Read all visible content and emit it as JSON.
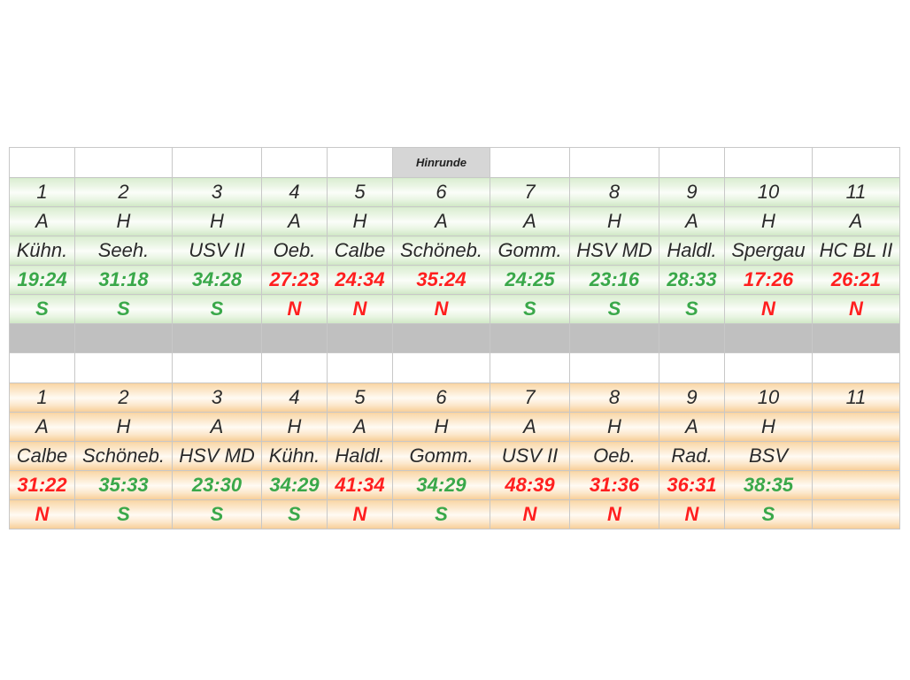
{
  "header": {
    "label": "Hinrunde"
  },
  "hinrunde": {
    "games": [
      {
        "nr": "1",
        "venue": "A",
        "opponent": "Kühn.",
        "score": "19:24",
        "result": "S"
      },
      {
        "nr": "2",
        "venue": "H",
        "opponent": "Seeh.",
        "score": "31:18",
        "result": "S"
      },
      {
        "nr": "3",
        "venue": "H",
        "opponent": "USV II",
        "score": "34:28",
        "result": "S"
      },
      {
        "nr": "4",
        "venue": "A",
        "opponent": "Oeb.",
        "score": "27:23",
        "result": "N"
      },
      {
        "nr": "5",
        "venue": "H",
        "opponent": "Calbe",
        "score": "24:34",
        "result": "N"
      },
      {
        "nr": "6",
        "venue": "A",
        "opponent": "Schöneb.",
        "score": "35:24",
        "result": "N"
      },
      {
        "nr": "7",
        "venue": "A",
        "opponent": "Gomm.",
        "score": "24:25",
        "result": "S"
      },
      {
        "nr": "8",
        "venue": "H",
        "opponent": "HSV MD",
        "score": "23:16",
        "result": "S"
      },
      {
        "nr": "9",
        "venue": "A",
        "opponent": "Haldl.",
        "score": "28:33",
        "result": "S"
      },
      {
        "nr": "10",
        "venue": "H",
        "opponent": "Spergau",
        "score": "17:26",
        "result": "N"
      },
      {
        "nr": "11",
        "venue": "A",
        "opponent": "HC BL II",
        "score": "26:21",
        "result": "N"
      }
    ]
  },
  "rueckrunde": {
    "games": [
      {
        "nr": "1",
        "venue": "A",
        "opponent": "Calbe",
        "score": "31:22",
        "result": "N"
      },
      {
        "nr": "2",
        "venue": "H",
        "opponent": "Schöneb.",
        "score": "35:33",
        "result": "S"
      },
      {
        "nr": "3",
        "venue": "A",
        "opponent": "HSV MD",
        "score": "23:30",
        "result": "S"
      },
      {
        "nr": "4",
        "venue": "H",
        "opponent": "Kühn.",
        "score": "34:29",
        "result": "S"
      },
      {
        "nr": "5",
        "venue": "A",
        "opponent": "Haldl.",
        "score": "41:34",
        "result": "N"
      },
      {
        "nr": "6",
        "venue": "H",
        "opponent": "Gomm.",
        "score": "34:29",
        "result": "S"
      },
      {
        "nr": "7",
        "venue": "A",
        "opponent": "USV II",
        "score": "48:39",
        "result": "N"
      },
      {
        "nr": "8",
        "venue": "H",
        "opponent": "Oeb.",
        "score": "31:36",
        "result": "N"
      },
      {
        "nr": "9",
        "venue": "A",
        "opponent": "Rad.",
        "score": "36:31",
        "result": "N"
      },
      {
        "nr": "10",
        "venue": "H",
        "opponent": "BSV",
        "score": "38:35",
        "result": "S"
      },
      {
        "nr": "11",
        "venue": "",
        "opponent": "",
        "score": "",
        "result": ""
      }
    ]
  },
  "colors": {
    "win": "#3aa84a",
    "loss": "#ff1f1f",
    "green_band": "#d9edd0",
    "orange_band": "#f9d7a8",
    "separator": "#c0c0c0"
  },
  "result_color_key": {
    "S": "win",
    "N": "loss"
  }
}
